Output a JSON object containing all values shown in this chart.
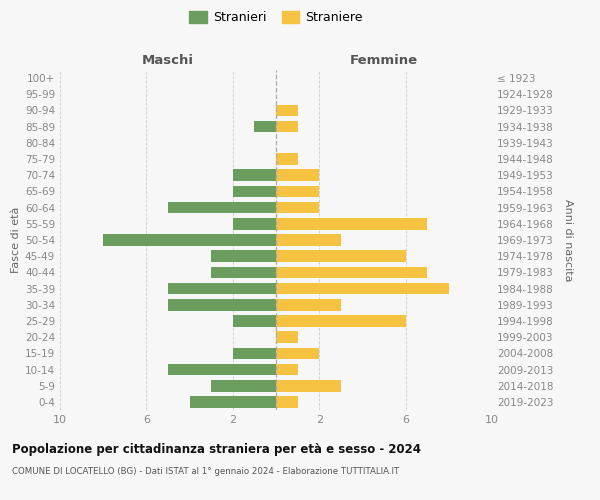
{
  "age_groups": [
    "0-4",
    "5-9",
    "10-14",
    "15-19",
    "20-24",
    "25-29",
    "30-34",
    "35-39",
    "40-44",
    "45-49",
    "50-54",
    "55-59",
    "60-64",
    "65-69",
    "70-74",
    "75-79",
    "80-84",
    "85-89",
    "90-94",
    "95-99",
    "100+"
  ],
  "birth_years": [
    "2019-2023",
    "2014-2018",
    "2009-2013",
    "2004-2008",
    "1999-2003",
    "1994-1998",
    "1989-1993",
    "1984-1988",
    "1979-1983",
    "1974-1978",
    "1969-1973",
    "1964-1968",
    "1959-1963",
    "1954-1958",
    "1949-1953",
    "1944-1948",
    "1939-1943",
    "1934-1938",
    "1929-1933",
    "1924-1928",
    "≤ 1923"
  ],
  "maschi": [
    4,
    3,
    5,
    2,
    0,
    2,
    5,
    5,
    3,
    3,
    8,
    2,
    5,
    2,
    2,
    0,
    0,
    1,
    0,
    0,
    0
  ],
  "femmine": [
    1,
    3,
    1,
    2,
    1,
    6,
    3,
    8,
    7,
    6,
    3,
    7,
    2,
    2,
    2,
    1,
    0,
    1,
    1,
    0,
    0
  ],
  "color_maschi": "#6b9e5e",
  "color_femmine": "#f5c242",
  "background_color": "#f7f7f7",
  "grid_color": "#cccccc",
  "title": "Popolazione per cittadinanza straniera per età e sesso - 2024",
  "subtitle": "COMUNE DI LOCATELLO (BG) - Dati ISTAT al 1° gennaio 2024 - Elaborazione TUTTITALIA.IT",
  "label_maschi": "Stranieri",
  "label_femmine": "Straniere",
  "header_left": "Maschi",
  "header_right": "Femmine",
  "ylabel_left": "Fasce di età",
  "ylabel_right": "Anni di nascita",
  "xlim": 10,
  "xtick_vals": [
    -10,
    -6,
    -2,
    2,
    6,
    10
  ],
  "xtick_labels": [
    "10",
    "6",
    "2",
    "2",
    "6",
    "10"
  ]
}
